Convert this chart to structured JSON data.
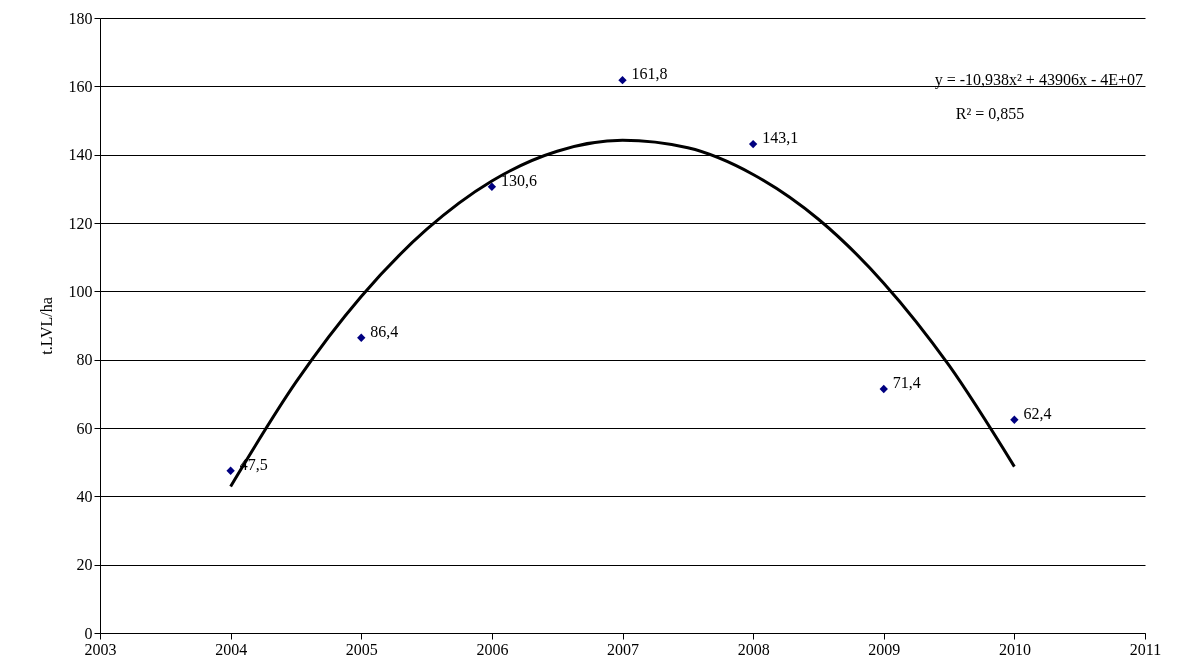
{
  "chart_data": {
    "type": "scatter",
    "ylabel": "t.LVL/ha",
    "x": [
      2004,
      2005,
      2006,
      2007,
      2008,
      2009,
      2010
    ],
    "series": [
      {
        "marker": "diamond",
        "color": "#000080",
        "values": [
          47.5,
          86.4,
          130.6,
          161.8,
          143.1,
          71.4,
          62.4
        ],
        "value_labels": [
          "47,5",
          "86,4",
          "130,6",
          "161,8",
          "143,1",
          "71,4",
          "62,4"
        ]
      },
      {
        "type": "line",
        "color": "#000000",
        "x": [
          2004,
          2004.5,
          2005,
          2005.5,
          2006,
          2006.5,
          2007,
          2007.5,
          2008,
          2008.5,
          2009,
          2009.5,
          2010
        ],
        "values": [
          42.9,
          73.4,
          98.5,
          118.1,
          132.3,
          141.0,
          144.2,
          142.0,
          134.2,
          121.1,
          102.4,
          78.3,
          48.7
        ]
      }
    ],
    "grid": "y",
    "xlim": [
      2003,
      2011
    ],
    "xticks": [
      2003,
      2004,
      2005,
      2006,
      2007,
      2008,
      2009,
      2010,
      2011
    ],
    "ylim": [
      0,
      180
    ],
    "yticks": [
      0,
      20,
      40,
      60,
      80,
      100,
      120,
      140,
      160,
      180
    ],
    "annotations": [
      "y = -10,938x² + 43906x - 4E+07",
      "R² = 0,855"
    ]
  }
}
